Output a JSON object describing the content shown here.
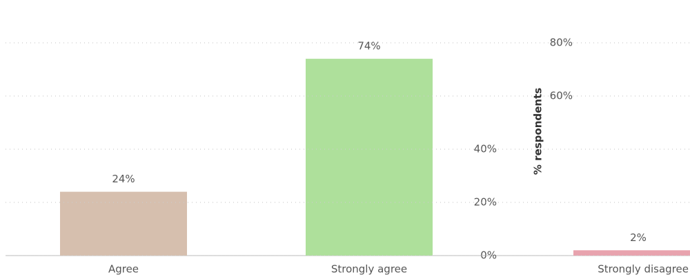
{
  "chart_data": {
    "type": "bar",
    "y_label": "% respondents",
    "categories": [
      "Agree",
      "Strongly agree",
      "Strongly disagree"
    ],
    "series": [
      {
        "name": "Agree",
        "color": "#d6bfae"
      },
      {
        "name": "Strongly agree",
        "color": "#aee09b"
      },
      {
        "name": "Strongly disagree",
        "color": "#e8a3ae"
      }
    ],
    "values": [
      24,
      74,
      2
    ],
    "value_labels": [
      "24%",
      "74%",
      "2%"
    ],
    "ylim": [
      0,
      80
    ],
    "yticks": [
      {
        "value": 0,
        "label": "0%"
      },
      {
        "value": 20,
        "label": "20%"
      },
      {
        "value": 40,
        "label": "40%"
      },
      {
        "value": 60,
        "label": "60%"
      },
      {
        "value": 80,
        "label": "80%"
      }
    ],
    "grid": true
  }
}
